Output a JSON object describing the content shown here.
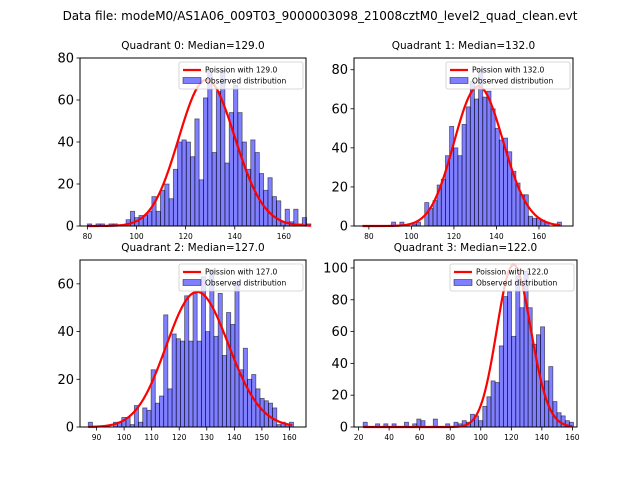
{
  "figure": {
    "suptitle": "Data file: modeM0/AS1A06_009T03_9000003098_21008cztM0_level2_quad_clean.evt"
  },
  "chart_data": [
    {
      "type": "bar",
      "title": "Quadrant 0: Median=129.0",
      "xlabel": "",
      "ylabel": "",
      "xlim": [
        77,
        169
      ],
      "ylim": [
        0,
        80
      ],
      "xticks": [
        80,
        100,
        120,
        140,
        160
      ],
      "yticks": [
        0,
        20,
        40,
        60,
        80
      ],
      "bin_start": 80,
      "bin_width": 1.75,
      "values": [
        1,
        0,
        1,
        1,
        0,
        1,
        1,
        0,
        0,
        3,
        7,
        4,
        5,
        5,
        7,
        14,
        7,
        17,
        20,
        13,
        27,
        40,
        41,
        40,
        33,
        51,
        22,
        61,
        74,
        35,
        64,
        74,
        30,
        54,
        67,
        54,
        40,
        27,
        41,
        35,
        25,
        17,
        23,
        14,
        12,
        2,
        8,
        2,
        8,
        1,
        4,
        1
      ],
      "poisson_mean": 129.0,
      "legend": [
        "Poission with 129.0",
        "Observed distribution"
      ],
      "legend_loc": "upper right",
      "bar_color": "#0000ff",
      "line_color": "#ff0000"
    },
    {
      "type": "bar",
      "title": "Quadrant 1: Median=132.0",
      "xlabel": "",
      "ylabel": "",
      "xlim": [
        73,
        176
      ],
      "ylim": [
        0,
        86
      ],
      "xticks": [
        80,
        100,
        120,
        140,
        160
      ],
      "yticks": [
        0,
        20,
        40,
        60,
        80
      ],
      "bin_start": 77,
      "bin_width": 1.95,
      "values": [
        0,
        0,
        0,
        0,
        0,
        0,
        0,
        2,
        0,
        2,
        0,
        0,
        1,
        2,
        0,
        12,
        9,
        13,
        21,
        24,
        36,
        51,
        40,
        36,
        52,
        61,
        74,
        65,
        80,
        66,
        69,
        60,
        50,
        44,
        45,
        38,
        28,
        22,
        16,
        16,
        5,
        4,
        4,
        3,
        2,
        0,
        1,
        2
      ],
      "poisson_mean": 132.0,
      "legend": [
        "Poission with 132.0",
        "Observed distribution"
      ],
      "legend_loc": "upper right",
      "bar_color": "#0000ff",
      "line_color": "#ff0000"
    },
    {
      "type": "bar",
      "title": "Quadrant 2: Median=127.0",
      "xlabel": "",
      "ylabel": "",
      "xlim": [
        84,
        166
      ],
      "ylim": [
        0,
        70
      ],
      "xticks": [
        90,
        100,
        110,
        120,
        130,
        140,
        150,
        160
      ],
      "yticks": [
        0,
        20,
        40,
        60
      ],
      "bin_start": 87,
      "bin_width": 1.52,
      "values": [
        2,
        0,
        0,
        0,
        0,
        0,
        2,
        2,
        4,
        4,
        1,
        9,
        2,
        8,
        7,
        24,
        10,
        13,
        47,
        16,
        39,
        37,
        36,
        55,
        36,
        56,
        36,
        63,
        40,
        66,
        38,
        56,
        30,
        48,
        43,
        61,
        24,
        33,
        20,
        22,
        16,
        12,
        11,
        10,
        8,
        1,
        2,
        1,
        2
      ],
      "poisson_mean": 127.0,
      "legend": [
        "Poission with 127.0",
        "Observed distribution"
      ],
      "legend_loc": "upper right",
      "bar_color": "#0000ff",
      "line_color": "#ff0000"
    },
    {
      "type": "bar",
      "title": "Quadrant 3: Median=122.0",
      "xlabel": "",
      "ylabel": "",
      "xlim": [
        17,
        163
      ],
      "ylim": [
        0,
        105
      ],
      "xticks": [
        20,
        40,
        60,
        80,
        100,
        120,
        140,
        160
      ],
      "yticks": [
        0,
        20,
        40,
        60,
        80,
        100
      ],
      "bin_start": 23,
      "bin_width": 2.7,
      "values": [
        3,
        0,
        0,
        2,
        0,
        2,
        0,
        2,
        0,
        0,
        3,
        0,
        2,
        5,
        4,
        0,
        0,
        5,
        0,
        0,
        2,
        0,
        3,
        2,
        4,
        3,
        8,
        7,
        4,
        13,
        19,
        29,
        28,
        51,
        82,
        85,
        57,
        95,
        75,
        98,
        75,
        52,
        58,
        63,
        29,
        38,
        16,
        9,
        7,
        4,
        3
      ],
      "poisson_mean": 122.0,
      "legend": [
        "Poission with 122.0",
        "Observed distribution"
      ],
      "legend_loc": "upper right",
      "bar_color": "#0000ff",
      "line_color": "#ff0000"
    }
  ]
}
